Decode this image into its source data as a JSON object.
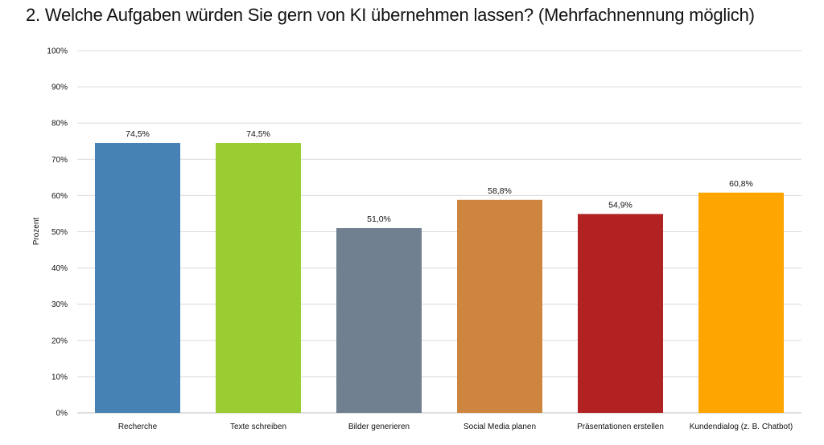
{
  "chart_data": {
    "type": "bar",
    "title": "2. Welche Aufgaben würden Sie gern von KI übernehmen lassen? (Mehrfachnennung möglich)",
    "xlabel": "",
    "ylabel": "Prozent",
    "ylim": [
      0,
      100
    ],
    "yticks": [
      "0%",
      "10%",
      "20%",
      "30%",
      "40%",
      "50%",
      "60%",
      "70%",
      "80%",
      "90%",
      "100%"
    ],
    "grid": true,
    "categories": [
      "Recherche",
      "Texte schreiben",
      "Bilder generieren",
      "Social Media planen",
      "Präsentationen erstellen",
      "Kundendialog (z. B. Chatbot)"
    ],
    "values": [
      74.5,
      74.5,
      51.0,
      58.8,
      54.9,
      60.8
    ],
    "data_labels": [
      "74,5%",
      "74,5%",
      "51,0%",
      "58,8%",
      "54,9%",
      "60,8%"
    ],
    "colors": [
      "#4682B4",
      "#9ACD32",
      "#708090",
      "#CD853F",
      "#B22222",
      "#FFA500"
    ]
  }
}
